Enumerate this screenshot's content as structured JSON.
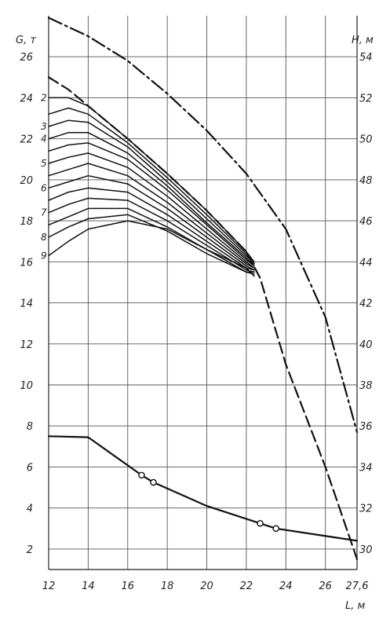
{
  "chart_data": {
    "type": "line",
    "xlabel": "L, м",
    "ylabel_left": "G, т",
    "ylabel_right": "H, м",
    "xlim": [
      12,
      27.6
    ],
    "ylim_left": [
      1,
      28
    ],
    "ylim_right": [
      29,
      56
    ],
    "x_ticks": [
      "12",
      "14",
      "16",
      "18",
      "20",
      "22",
      "24",
      "26",
      "27,6"
    ],
    "y_ticks_left": [
      "2",
      "4",
      "6",
      "8",
      "10",
      "12",
      "14",
      "16",
      "18",
      "20",
      "22",
      "24",
      "26"
    ],
    "y_ticks_right": [
      "30",
      "32",
      "34",
      "36",
      "38",
      "40",
      "42",
      "44",
      "46",
      "48",
      "50",
      "52",
      "54"
    ],
    "grid": true,
    "series": [
      {
        "axis": "left",
        "style": "solid",
        "x": [
          12,
          14,
          16.7,
          17.3,
          20,
          22.7,
          23.5,
          27.6
        ],
        "y": [
          7.5,
          7.45,
          5.6,
          5.25,
          4.1,
          3.25,
          3.0,
          2.4
        ],
        "markers_x": [
          16.7,
          17.3,
          22.7,
          23.5
        ]
      },
      {
        "axis": "left",
        "style": "dashed",
        "x": [
          12,
          13,
          14,
          16,
          18,
          20,
          22,
          22.7,
          24,
          26,
          27.6
        ],
        "y": [
          25.0,
          24.4,
          23.6,
          22.0,
          20.3,
          18.5,
          16.5,
          15.2,
          11.0,
          6.0,
          1.5
        ]
      },
      {
        "axis": "right",
        "style": "dashdot",
        "x": [
          12,
          14,
          16,
          18,
          20,
          22,
          24,
          26,
          27.6
        ],
        "y": [
          55.9,
          55.0,
          53.8,
          52.2,
          50.4,
          48.3,
          45.6,
          41.3,
          35.7
        ]
      },
      {
        "axis": "left",
        "style": "solid",
        "label": "2",
        "x": [
          12,
          13,
          14,
          16,
          18,
          20,
          22,
          22.4
        ],
        "y": [
          24.0,
          24.0,
          23.6,
          22.0,
          20.3,
          18.5,
          16.5,
          16.0
        ]
      },
      {
        "axis": "left",
        "style": "solid",
        "x": [
          12,
          13,
          14,
          16,
          18,
          20,
          22,
          22.4
        ],
        "y": [
          23.2,
          23.5,
          23.2,
          21.8,
          20.1,
          18.3,
          16.4,
          15.9
        ]
      },
      {
        "axis": "left",
        "style": "solid",
        "label": "3",
        "x": [
          12,
          13,
          14,
          16,
          18,
          20,
          22,
          22.4
        ],
        "y": [
          22.6,
          22.9,
          22.8,
          21.6,
          19.9,
          18.1,
          16.3,
          15.9
        ]
      },
      {
        "axis": "left",
        "style": "solid",
        "label": "4",
        "x": [
          12,
          13,
          14,
          16,
          18,
          20,
          22,
          22.4
        ],
        "y": [
          22.0,
          22.3,
          22.3,
          21.3,
          19.7,
          17.9,
          16.2,
          15.8
        ]
      },
      {
        "axis": "left",
        "style": "solid",
        "x": [
          12,
          13,
          14,
          16,
          18,
          20,
          22,
          22.4
        ],
        "y": [
          21.4,
          21.7,
          21.8,
          21.0,
          19.5,
          17.8,
          16.1,
          15.8
        ]
      },
      {
        "axis": "left",
        "style": "solid",
        "label": "5",
        "x": [
          12,
          13,
          14,
          16,
          18,
          20,
          22,
          22.4
        ],
        "y": [
          20.8,
          21.1,
          21.3,
          20.6,
          19.2,
          17.6,
          16.0,
          15.7
        ]
      },
      {
        "axis": "left",
        "style": "solid",
        "x": [
          12,
          13,
          14,
          16,
          18,
          20,
          22,
          22.4
        ],
        "y": [
          20.2,
          20.5,
          20.8,
          20.2,
          18.9,
          17.4,
          15.9,
          15.7
        ]
      },
      {
        "axis": "left",
        "style": "solid",
        "label": "6",
        "x": [
          12,
          13,
          14,
          16,
          18,
          20,
          22,
          22.4
        ],
        "y": [
          19.6,
          19.9,
          20.2,
          19.8,
          18.6,
          17.2,
          15.8,
          15.6
        ]
      },
      {
        "axis": "left",
        "style": "solid",
        "x": [
          12,
          13,
          14,
          16,
          18,
          20,
          22,
          22.4
        ],
        "y": [
          19.0,
          19.4,
          19.6,
          19.4,
          18.3,
          17.0,
          15.7,
          15.6
        ]
      },
      {
        "axis": "left",
        "style": "solid",
        "label": "7",
        "x": [
          12,
          13,
          14,
          16,
          18,
          20,
          22,
          22.4
        ],
        "y": [
          18.4,
          18.8,
          19.1,
          19.0,
          18.0,
          16.8,
          15.6,
          15.5
        ]
      },
      {
        "axis": "left",
        "style": "solid",
        "x": [
          12,
          13,
          14,
          16,
          18,
          20,
          22,
          22.4
        ],
        "y": [
          17.8,
          18.2,
          18.6,
          18.6,
          17.7,
          16.6,
          15.5,
          15.5
        ]
      },
      {
        "axis": "left",
        "style": "solid",
        "label": "8",
        "x": [
          12,
          13,
          14,
          16,
          18,
          20,
          22,
          22.4
        ],
        "y": [
          17.2,
          17.7,
          18.1,
          18.3,
          17.5,
          16.4,
          15.5,
          15.4
        ]
      },
      {
        "axis": "left",
        "style": "solid",
        "label": "9",
        "x": [
          12,
          13,
          14,
          16,
          18,
          20,
          22,
          22.4
        ],
        "y": [
          16.3,
          17.0,
          17.6,
          18.0,
          17.6,
          16.6,
          15.7,
          15.3
        ]
      }
    ]
  }
}
